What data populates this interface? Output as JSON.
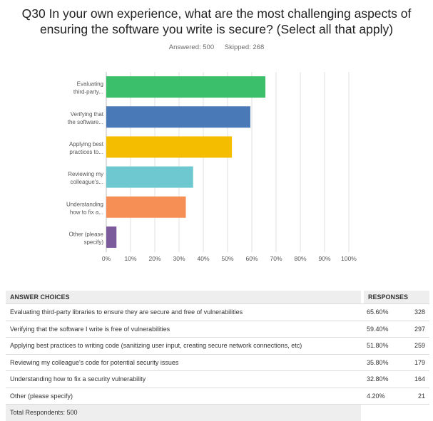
{
  "question": {
    "line1": "Q30 In your own experience, what are the most challenging aspects of",
    "line2": "ensuring the software you write is secure? (Select all that apply)"
  },
  "meta": {
    "answered": "Answered: 500",
    "skipped": "Skipped: 268"
  },
  "chart_data": {
    "type": "bar",
    "orientation": "horizontal",
    "categories": [
      [
        "Evaluating",
        "third-party..."
      ],
      [
        "Verifying that",
        "the software..."
      ],
      [
        "Applying best",
        "practices to..."
      ],
      [
        "Reviewing my",
        "colleague's..."
      ],
      [
        "Understanding",
        "how to fix a..."
      ],
      [
        "Other (please",
        "specify)"
      ]
    ],
    "values": [
      65.6,
      59.4,
      51.8,
      35.8,
      32.8,
      4.2
    ],
    "colors": [
      "#3cbf6b",
      "#4a79b8",
      "#f5bd00",
      "#6dc9cf",
      "#f58f55",
      "#7c5b9c"
    ],
    "xlim": [
      0,
      100
    ],
    "xticks": [
      "0%",
      "10%",
      "20%",
      "30%",
      "40%",
      "50%",
      "60%",
      "70%",
      "80%",
      "90%",
      "100%"
    ],
    "grid": true
  },
  "table": {
    "header_choices": "ANSWER CHOICES",
    "header_responses": "RESPONSES",
    "rows": [
      {
        "choice": "Evaluating third-party libraries to ensure they are secure and free of vulnerabilities",
        "percent": "65.60%",
        "count": "328"
      },
      {
        "choice": "Verifying that the software I write is free of vulnerabilities",
        "percent": "59.40%",
        "count": "297"
      },
      {
        "choice": "Applying best practices to writing code (sanitizing user input, creating secure network connections, etc)",
        "percent": "51.80%",
        "count": "259"
      },
      {
        "choice": "Reviewing my colleague's code for potential security issues",
        "percent": "35.80%",
        "count": "179"
      },
      {
        "choice": "Understanding how to fix a security vulnerability",
        "percent": "32.80%",
        "count": "164"
      },
      {
        "choice": "Other (please specify)",
        "percent": "4.20%",
        "count": "21"
      }
    ],
    "total": "Total Respondents: 500"
  }
}
